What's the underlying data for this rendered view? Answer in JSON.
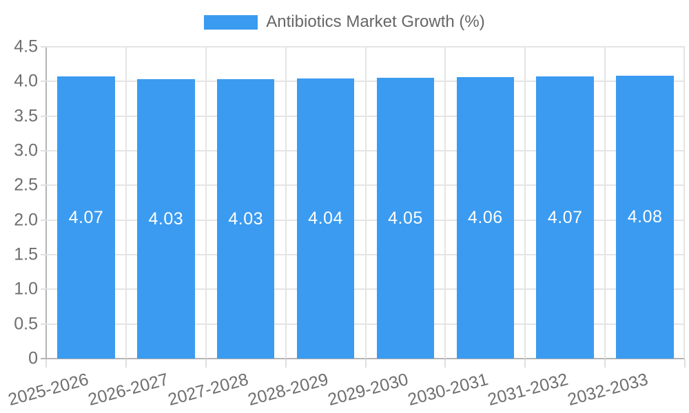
{
  "chart_data": {
    "type": "bar",
    "title": "Antibiotics Market Growth (%)",
    "categories": [
      "2025-2026",
      "2026-2027",
      "2027-2028",
      "2028-2029",
      "2029-2030",
      "2030-2031",
      "2031-2032",
      "2032-2033"
    ],
    "values": [
      4.07,
      4.03,
      4.03,
      4.04,
      4.05,
      4.06,
      4.07,
      4.08
    ],
    "value_labels": [
      "4.07",
      "4.03",
      "4.03",
      "4.04",
      "4.05",
      "4.06",
      "4.07",
      "4.08"
    ],
    "series": [
      {
        "name": "Antibiotics Market Growth (%)",
        "values": [
          4.07,
          4.03,
          4.03,
          4.04,
          4.05,
          4.06,
          4.07,
          4.08
        ]
      }
    ],
    "xlabel": "",
    "ylabel": "",
    "ylim": [
      0,
      4.5
    ],
    "ytick_step": 0.5,
    "ytick_labels": [
      "0",
      "0.5",
      "1.0",
      "1.5",
      "2.0",
      "2.5",
      "3.0",
      "3.5",
      "4.0",
      "4.5"
    ],
    "grid": true,
    "legend_position": "top",
    "x_label_rotation_deg": -15
  },
  "legend": {
    "items": [
      {
        "label": "Antibiotics Market Growth (%)",
        "swatch_color": "#3B9BF0"
      }
    ]
  },
  "style": {
    "bar_color": "#3B9BF0",
    "value_label_color": "#FFFFFF",
    "grid_color": "#E4E4E4",
    "tick_color": "#DFDFDF",
    "axis_line_color": "#B3B3B3",
    "axis_text_color": "#6E6E6E",
    "legend_text_color": "#666666",
    "background": "#FFFFFF"
  }
}
